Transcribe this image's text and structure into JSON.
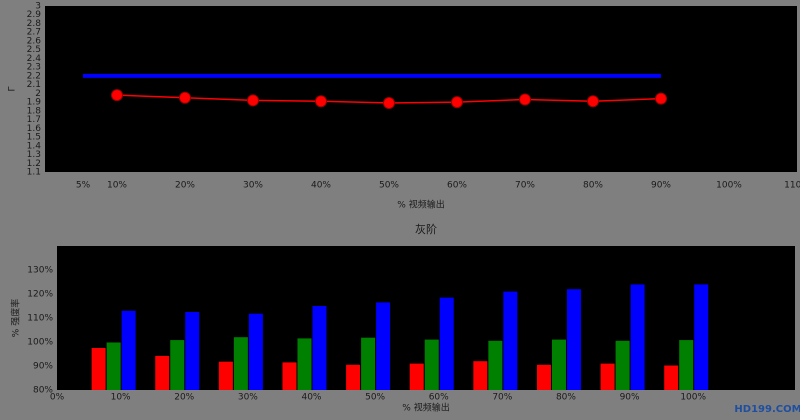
{
  "chart_data": [
    {
      "type": "line",
      "y_label": "Γ",
      "x_label": "% 视频输出",
      "xlim": [
        0,
        110
      ],
      "ylim": [
        1.1,
        3
      ],
      "xticks": [
        {
          "value": 5,
          "label": "5%"
        },
        {
          "value": 10,
          "label": "10%"
        },
        {
          "value": 20,
          "label": "20%"
        },
        {
          "value": 30,
          "label": "30%"
        },
        {
          "value": 40,
          "label": "40%"
        },
        {
          "value": 50,
          "label": "50%"
        },
        {
          "value": 60,
          "label": "60%"
        },
        {
          "value": 70,
          "label": "70%"
        },
        {
          "value": 80,
          "label": "80%"
        },
        {
          "value": 90,
          "label": "90%"
        },
        {
          "value": 100,
          "label": "100%"
        },
        {
          "value": 110,
          "label": "110%"
        }
      ],
      "yticks": [
        1.1,
        1.2,
        1.3,
        1.4,
        1.5,
        1.6,
        1.7,
        1.8,
        1.9,
        2,
        2.1,
        2.2,
        2.3,
        2.4,
        2.5,
        2.6,
        2.7,
        2.8,
        2.9,
        3
      ],
      "series": [
        {
          "color": "#0000ff",
          "x": [
            5,
            90
          ],
          "values": [
            2.2,
            2.2
          ]
        },
        {
          "color": "#ff0000",
          "x": [
            10,
            20,
            30,
            40,
            50,
            60,
            70,
            80,
            90
          ],
          "values": [
            1.98,
            1.95,
            1.92,
            1.91,
            1.89,
            1.9,
            1.93,
            1.91,
            1.94
          ]
        }
      ]
    },
    {
      "type": "bar",
      "title": "灰阶",
      "y_label": "% 强度率",
      "x_label": "% 视频输出",
      "xlim": [
        0,
        116
      ],
      "ylim": [
        80,
        140
      ],
      "xticks": [
        {
          "value": 0,
          "label": "0%"
        },
        {
          "value": 10,
          "label": "10%"
        },
        {
          "value": 20,
          "label": "20%"
        },
        {
          "value": 30,
          "label": "30%"
        },
        {
          "value": 40,
          "label": "40%"
        },
        {
          "value": 50,
          "label": "50%"
        },
        {
          "value": 60,
          "label": "60%"
        },
        {
          "value": 70,
          "label": "70%"
        },
        {
          "value": 80,
          "label": "80%"
        },
        {
          "value": 90,
          "label": "90%"
        },
        {
          "value": 100,
          "label": "100%"
        }
      ],
      "yticks": [
        {
          "value": 80,
          "label": "80%"
        },
        {
          "value": 90,
          "label": "90%"
        },
        {
          "value": 100,
          "label": "100%"
        },
        {
          "value": 110,
          "label": "110%"
        },
        {
          "value": 120,
          "label": "120%"
        },
        {
          "value": 130,
          "label": "130%"
        }
      ],
      "x": [
        10,
        20,
        30,
        40,
        50,
        60,
        70,
        80,
        90,
        100
      ],
      "series": [
        {
          "color": "#ff0000",
          "values": [
            97.5,
            94.2,
            91.8,
            91.5,
            90.5,
            91,
            92,
            90.5,
            91,
            90.2
          ]
        },
        {
          "color": "#008000",
          "values": [
            99.8,
            100.8,
            102,
            101.5,
            101.8,
            101,
            100.5,
            101,
            100.5,
            100.8
          ]
        },
        {
          "color": "#0000ff",
          "values": [
            113,
            112.5,
            111.8,
            115,
            116.5,
            118.5,
            121,
            122,
            124,
            124
          ]
        }
      ]
    }
  ],
  "watermark": "HD199.COM"
}
